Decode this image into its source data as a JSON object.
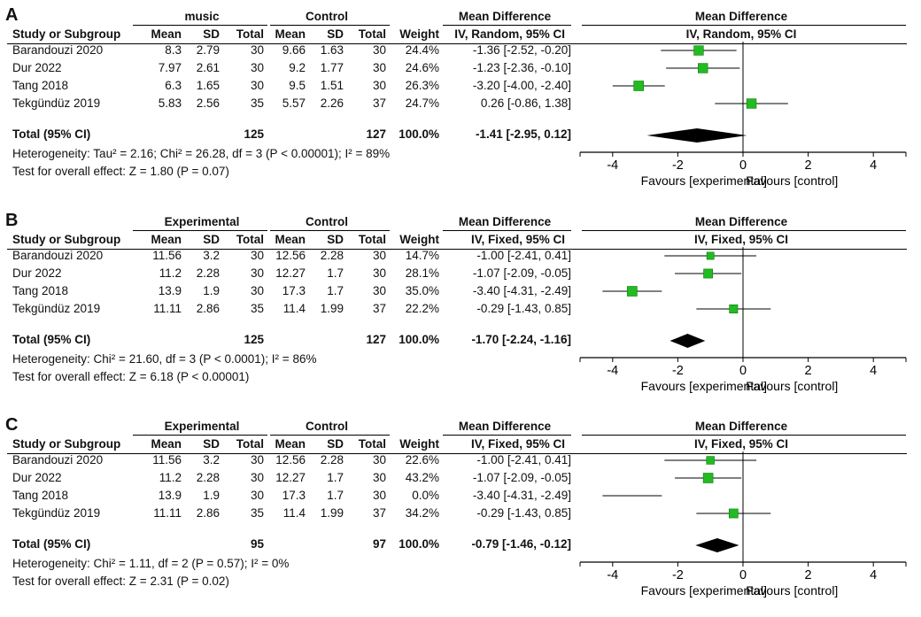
{
  "chart_data": [
    {
      "type": "forest",
      "panel_letter": "A",
      "group1_name": "music",
      "group2_name": "Control",
      "col_study": "Study or Subgroup",
      "col_mean": "Mean",
      "col_sd": "SD",
      "col_total": "Total",
      "col_weight": "Weight",
      "md_title": "Mean Difference",
      "md_method": "IV, Random, 95% CI",
      "plot_title": "Mean Difference",
      "plot_method": "IV, Random, 95% CI",
      "studies": [
        {
          "name": "Barandouzi 2020",
          "m1": "8.3",
          "sd1": "2.79",
          "n1": "30",
          "m2": "9.66",
          "sd2": "1.63",
          "n2": "30",
          "weight": "24.4%",
          "ci_text": "-1.36 [-2.52, -0.20]",
          "est": -1.36,
          "lo": -2.52,
          "hi": -0.2,
          "w": 24.4
        },
        {
          "name": "Dur 2022",
          "m1": "7.97",
          "sd1": "2.61",
          "n1": "30",
          "m2": "9.2",
          "sd2": "1.77",
          "n2": "30",
          "weight": "24.6%",
          "ci_text": "-1.23 [-2.36, -0.10]",
          "est": -1.23,
          "lo": -2.36,
          "hi": -0.1,
          "w": 24.6
        },
        {
          "name": "Tang 2018",
          "m1": "6.3",
          "sd1": "1.65",
          "n1": "30",
          "m2": "9.5",
          "sd2": "1.51",
          "n2": "30",
          "weight": "26.3%",
          "ci_text": "-3.20 [-4.00, -2.40]",
          "est": -3.2,
          "lo": -4.0,
          "hi": -2.4,
          "w": 26.3
        },
        {
          "name": "Tekgündüz 2019",
          "m1": "5.83",
          "sd1": "2.56",
          "n1": "35",
          "m2": "5.57",
          "sd2": "2.26",
          "n2": "37",
          "weight": "24.7%",
          "ci_text": "0.26 [-0.86, 1.38]",
          "est": 0.26,
          "lo": -0.86,
          "hi": 1.38,
          "w": 24.7
        }
      ],
      "total": {
        "label": "Total (95% CI)",
        "n1": "125",
        "n2": "127",
        "weight": "100.0%",
        "ci_text": "-1.41 [-2.95, 0.12]",
        "est": -1.41,
        "lo": -2.95,
        "hi": 0.12
      },
      "heterogeneity": "Heterogeneity: Tau² = 2.16; Chi² = 26.28, df = 3 (P < 0.00001); I² = 89%",
      "overall_effect": "Test for overall effect: Z = 1.80 (P = 0.07)",
      "xlim": [
        -5,
        5
      ],
      "ticks": [
        -4,
        -2,
        0,
        2,
        4
      ],
      "tick_labels": [
        "-4",
        "-2",
        "0",
        "2",
        "4"
      ],
      "favours_left": "Favours [experimental]",
      "favours_right": "Favours [control]"
    },
    {
      "type": "forest",
      "panel_letter": "B",
      "group1_name": "Experimental",
      "group2_name": "Control",
      "col_study": "Study or Subgroup",
      "col_mean": "Mean",
      "col_sd": "SD",
      "col_total": "Total",
      "col_weight": "Weight",
      "md_title": "Mean Difference",
      "md_method": "IV, Fixed, 95% CI",
      "plot_title": "Mean Difference",
      "plot_method": "IV, Fixed, 95% CI",
      "studies": [
        {
          "name": "Barandouzi 2020",
          "m1": "11.56",
          "sd1": "3.2",
          "n1": "30",
          "m2": "12.56",
          "sd2": "2.28",
          "n2": "30",
          "weight": "14.7%",
          "ci_text": "-1.00 [-2.41, 0.41]",
          "est": -1.0,
          "lo": -2.41,
          "hi": 0.41,
          "w": 14.7
        },
        {
          "name": "Dur 2022",
          "m1": "11.2",
          "sd1": "2.28",
          "n1": "30",
          "m2": "12.27",
          "sd2": "1.7",
          "n2": "30",
          "weight": "28.1%",
          "ci_text": "-1.07 [-2.09, -0.05]",
          "est": -1.07,
          "lo": -2.09,
          "hi": -0.05,
          "w": 28.1
        },
        {
          "name": "Tang 2018",
          "m1": "13.9",
          "sd1": "1.9",
          "n1": "30",
          "m2": "17.3",
          "sd2": "1.7",
          "n2": "30",
          "weight": "35.0%",
          "ci_text": "-3.40 [-4.31, -2.49]",
          "est": -3.4,
          "lo": -4.31,
          "hi": -2.49,
          "w": 35.0
        },
        {
          "name": "Tekgündüz 2019",
          "m1": "11.11",
          "sd1": "2.86",
          "n1": "35",
          "m2": "11.4",
          "sd2": "1.99",
          "n2": "37",
          "weight": "22.2%",
          "ci_text": "-0.29 [-1.43, 0.85]",
          "est": -0.29,
          "lo": -1.43,
          "hi": 0.85,
          "w": 22.2
        }
      ],
      "total": {
        "label": "Total (95% CI)",
        "n1": "125",
        "n2": "127",
        "weight": "100.0%",
        "ci_text": "-1.70 [-2.24, -1.16]",
        "est": -1.7,
        "lo": -2.24,
        "hi": -1.16
      },
      "heterogeneity": "Heterogeneity: Chi² = 21.60, df = 3 (P < 0.0001); I² = 86%",
      "overall_effect": "Test for overall effect: Z = 6.18 (P < 0.00001)",
      "xlim": [
        -5,
        5
      ],
      "ticks": [
        -4,
        -2,
        0,
        2,
        4
      ],
      "tick_labels": [
        "-4",
        "-2",
        "0",
        "2",
        "4"
      ],
      "favours_left": "Favours [experimental]",
      "favours_right": "Favours [control]"
    },
    {
      "type": "forest",
      "panel_letter": "C",
      "group1_name": "Experimental",
      "group2_name": "Control",
      "col_study": "Study or Subgroup",
      "col_mean": "Mean",
      "col_sd": "SD",
      "col_total": "Total",
      "col_weight": "Weight",
      "md_title": "Mean Difference",
      "md_method": "IV, Fixed, 95% CI",
      "plot_title": "Mean Difference",
      "plot_method": "IV, Fixed, 95% CI",
      "studies": [
        {
          "name": "Barandouzi 2020",
          "m1": "11.56",
          "sd1": "3.2",
          "n1": "30",
          "m2": "12.56",
          "sd2": "2.28",
          "n2": "30",
          "weight": "22.6%",
          "ci_text": "-1.00 [-2.41, 0.41]",
          "est": -1.0,
          "lo": -2.41,
          "hi": 0.41,
          "w": 22.6
        },
        {
          "name": "Dur 2022",
          "m1": "11.2",
          "sd1": "2.28",
          "n1": "30",
          "m2": "12.27",
          "sd2": "1.7",
          "n2": "30",
          "weight": "43.2%",
          "ci_text": "-1.07 [-2.09, -0.05]",
          "est": -1.07,
          "lo": -2.09,
          "hi": -0.05,
          "w": 43.2
        },
        {
          "name": "Tang 2018",
          "m1": "13.9",
          "sd1": "1.9",
          "n1": "30",
          "m2": "17.3",
          "sd2": "1.7",
          "n2": "30",
          "weight": "0.0%",
          "ci_text": "-3.40 [-4.31, -2.49]",
          "est": -3.4,
          "lo": -4.31,
          "hi": -2.49,
          "w": 0.0
        },
        {
          "name": "Tekgündüz 2019",
          "m1": "11.11",
          "sd1": "2.86",
          "n1": "35",
          "m2": "11.4",
          "sd2": "1.99",
          "n2": "37",
          "weight": "34.2%",
          "ci_text": "-0.29 [-1.43, 0.85]",
          "est": -0.29,
          "lo": -1.43,
          "hi": 0.85,
          "w": 34.2
        }
      ],
      "total": {
        "label": "Total (95% CI)",
        "n1": "95",
        "n2": "97",
        "weight": "100.0%",
        "ci_text": "-0.79 [-1.46, -0.12]",
        "est": -0.79,
        "lo": -1.46,
        "hi": -0.12
      },
      "heterogeneity": "Heterogeneity: Chi² = 1.11, df = 2 (P = 0.57); I² = 0%",
      "overall_effect": "Test for overall effect: Z = 2.31 (P = 0.02)",
      "xlim": [
        -5,
        5
      ],
      "ticks": [
        -4,
        -2,
        0,
        2,
        4
      ],
      "tick_labels": [
        "-4",
        "-2",
        "0",
        "2",
        "4"
      ],
      "favours_left": "Favours [experimental]",
      "favours_right": "Favours [control]"
    }
  ],
  "colors": {
    "marker": "#22bb22",
    "marker_edge": "#0a7a0a",
    "diamond": "#000000",
    "line": "#000000"
  }
}
